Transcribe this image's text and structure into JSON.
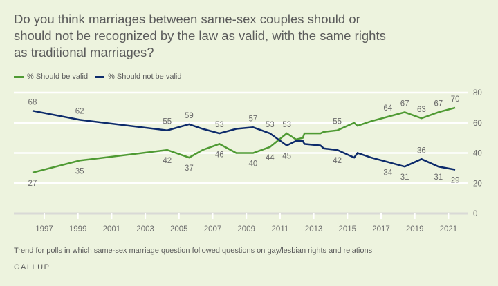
{
  "chart_data": {
    "type": "line",
    "title": "Do you think marriages between same-sex couples should or should not be recognized by the law as valid, with the same rights as traditional marriages?",
    "xlabel": "",
    "ylabel": "",
    "xlim": [
      1995.5,
      2022.2
    ],
    "ylim": [
      0,
      80
    ],
    "x_ticks": [
      "1997",
      "1999",
      "2001",
      "2003",
      "2005",
      "2007",
      "2009",
      "2011",
      "2013",
      "2015",
      "2017",
      "2019",
      "2021"
    ],
    "y_ticks": [
      "0",
      "20",
      "40",
      "60",
      "80"
    ],
    "grid": true,
    "legend_position": "top-left",
    "series": [
      {
        "name": "% Should be valid",
        "color": "#4f9a33",
        "points": [
          {
            "x": 1996.3,
            "y": 27,
            "label": "27",
            "pos": "below"
          },
          {
            "x": 1999.1,
            "y": 35,
            "label": "35",
            "pos": "below"
          },
          {
            "x": 2004.3,
            "y": 42,
            "label": "42",
            "pos": "below"
          },
          {
            "x": 2005.6,
            "y": 37,
            "label": "37",
            "pos": "below"
          },
          {
            "x": 2006.4,
            "y": 42
          },
          {
            "x": 2007.4,
            "y": 46,
            "label": "46",
            "pos": "below"
          },
          {
            "x": 2008.4,
            "y": 40
          },
          {
            "x": 2009.4,
            "y": 40,
            "label": "40",
            "pos": "below"
          },
          {
            "x": 2010.4,
            "y": 44,
            "label": "44",
            "pos": "below"
          },
          {
            "x": 2011.4,
            "y": 53,
            "label": "53",
            "pos": "above"
          },
          {
            "x": 2011.95,
            "y": 49
          },
          {
            "x": 2012.35,
            "y": 50
          },
          {
            "x": 2012.45,
            "y": 53
          },
          {
            "x": 2013.4,
            "y": 53
          },
          {
            "x": 2013.6,
            "y": 54
          },
          {
            "x": 2014.4,
            "y": 55,
            "label": "55",
            "pos": "above"
          },
          {
            "x": 2015.4,
            "y": 60
          },
          {
            "x": 2015.6,
            "y": 58
          },
          {
            "x": 2016.4,
            "y": 61
          },
          {
            "x": 2017.4,
            "y": 64,
            "label": "64",
            "pos": "above"
          },
          {
            "x": 2018.4,
            "y": 67,
            "label": "67",
            "pos": "above"
          },
          {
            "x": 2019.4,
            "y": 63,
            "label": "63",
            "pos": "above"
          },
          {
            "x": 2020.4,
            "y": 67,
            "label": "67",
            "pos": "above"
          },
          {
            "x": 2021.4,
            "y": 70,
            "label": "70",
            "pos": "above"
          }
        ]
      },
      {
        "name": "% Should not be valid",
        "color": "#0d2b6b",
        "points": [
          {
            "x": 1996.3,
            "y": 68,
            "label": "68",
            "pos": "above"
          },
          {
            "x": 1999.1,
            "y": 62,
            "label": "62",
            "pos": "above"
          },
          {
            "x": 2004.3,
            "y": 55,
            "label": "55",
            "pos": "above"
          },
          {
            "x": 2005.6,
            "y": 59,
            "label": "59",
            "pos": "above"
          },
          {
            "x": 2006.4,
            "y": 56
          },
          {
            "x": 2007.4,
            "y": 53,
            "label": "53",
            "pos": "above"
          },
          {
            "x": 2008.4,
            "y": 56
          },
          {
            "x": 2009.4,
            "y": 57,
            "label": "57",
            "pos": "above"
          },
          {
            "x": 2010.4,
            "y": 53,
            "label": "53",
            "pos": "above"
          },
          {
            "x": 2011.4,
            "y": 45,
            "label": "45",
            "pos": "below"
          },
          {
            "x": 2011.95,
            "y": 48
          },
          {
            "x": 2012.35,
            "y": 48
          },
          {
            "x": 2012.45,
            "y": 46
          },
          {
            "x": 2013.4,
            "y": 45
          },
          {
            "x": 2013.6,
            "y": 43
          },
          {
            "x": 2014.4,
            "y": 42,
            "label": "42",
            "pos": "below"
          },
          {
            "x": 2015.4,
            "y": 37
          },
          {
            "x": 2015.6,
            "y": 40
          },
          {
            "x": 2016.4,
            "y": 37
          },
          {
            "x": 2017.4,
            "y": 34,
            "label": "34",
            "pos": "below"
          },
          {
            "x": 2018.4,
            "y": 31,
            "label": "31",
            "pos": "below"
          },
          {
            "x": 2019.4,
            "y": 36,
            "label": "36",
            "pos": "above"
          },
          {
            "x": 2020.4,
            "y": 31,
            "label": "31",
            "pos": "below"
          },
          {
            "x": 2021.4,
            "y": 29,
            "label": "29",
            "pos": "below"
          }
        ]
      }
    ],
    "note": "Trend for polls in which same-sex marriage question followed questions on gay/lesbian rights and relations",
    "source": "GALLUP"
  },
  "legend": {
    "items": [
      {
        "label": "% Should be valid",
        "color": "#4f9a33"
      },
      {
        "label": "% Should not be valid",
        "color": "#0d2b6b"
      }
    ]
  }
}
